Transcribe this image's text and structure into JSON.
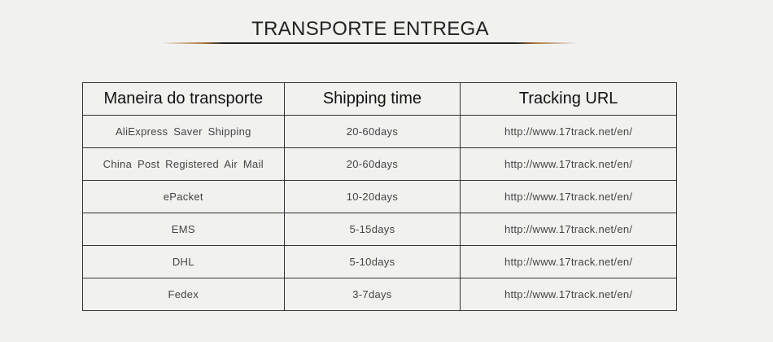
{
  "title": "TRANSPORTE ENTREGA",
  "table": {
    "headers": [
      "Maneira do transporte",
      "Shipping time",
      "Tracking URL"
    ],
    "rows": [
      [
        "AliExpress Saver Shipping",
        "20-60days",
        "http://www.17track.net/en/"
      ],
      [
        "China Post Registered Air Mail",
        "20-60days",
        "http://www.17track.net/en/"
      ],
      [
        "ePacket",
        "10-20days",
        "http://www.17track.net/en/"
      ],
      [
        "EMS",
        "5-15days",
        "http://www.17track.net/en/"
      ],
      [
        "DHL",
        "5-10days",
        "http://www.17track.net/en/"
      ],
      [
        "Fedex",
        "3-7days",
        "http://www.17track.net/en/"
      ]
    ]
  },
  "colors": {
    "background": "#f1f1f0",
    "accent_line": "#b07a40",
    "text": "#222222"
  }
}
